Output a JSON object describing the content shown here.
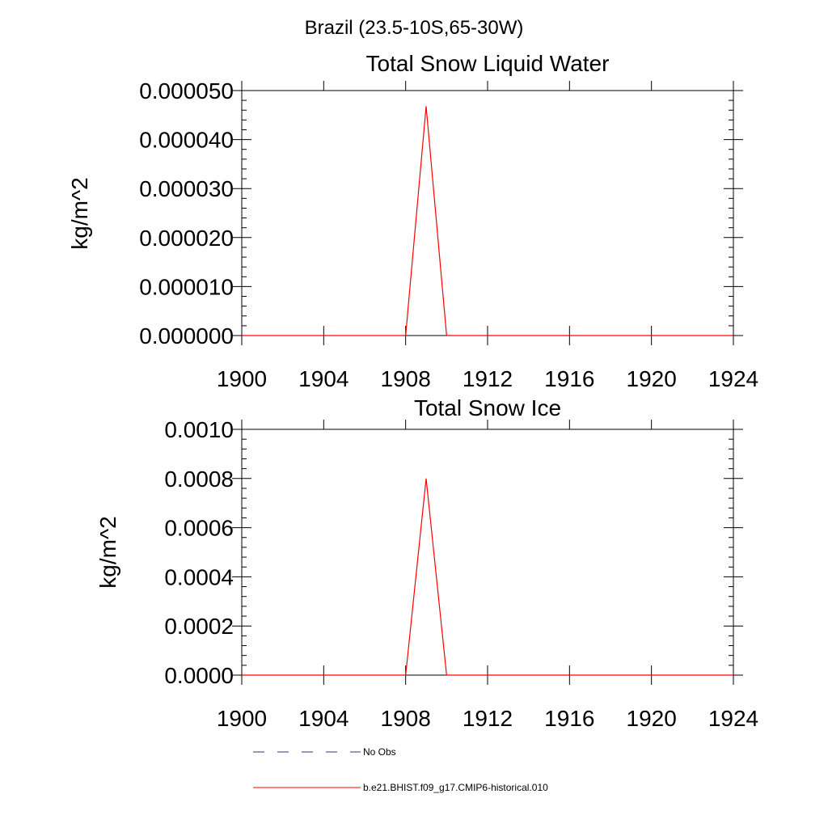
{
  "figure": {
    "region_title": "Brazil (23.5-10S,65-30W)"
  },
  "legend": [
    {
      "label": "No Obs",
      "color": "#33337f",
      "dash": true
    },
    {
      "label": "b.e21.BHIST.f09_g17.CMIP6-historical.010",
      "color": "#ff0000",
      "dash": false
    }
  ],
  "chart_data": [
    {
      "type": "line",
      "title": "Total Snow Liquid Water",
      "xlabel": "",
      "ylabel": "kg/m^2",
      "xlim": [
        1900,
        1924
      ],
      "ylim": [
        0,
        5e-05
      ],
      "x_ticks": [
        1900,
        1904,
        1908,
        1912,
        1916,
        1920,
        1924
      ],
      "x_tick_labels": [
        "1900",
        "1904",
        "1908",
        "1912",
        "1916",
        "1920",
        "1924"
      ],
      "y_ticks": [
        0,
        1e-05,
        2e-05,
        3e-05,
        4e-05,
        5e-05
      ],
      "y_tick_labels": [
        "0.000000",
        "0.000010",
        "0.000020",
        "0.000030",
        "0.000040",
        "0.000050"
      ],
      "grid": false,
      "series": [
        {
          "name": "b.e21.BHIST.f09_g17.CMIP6-historical.010",
          "color": "#ff0000",
          "x": [
            1900,
            1901,
            1902,
            1903,
            1904,
            1905,
            1906,
            1907,
            1908,
            1909,
            1910,
            1911,
            1912,
            1913,
            1914,
            1915,
            1916,
            1917,
            1918,
            1919,
            1920,
            1921,
            1922,
            1923,
            1924
          ],
          "y": [
            0,
            0,
            0,
            0,
            0,
            0,
            0,
            0,
            0,
            4.68e-05,
            0,
            0,
            0,
            0,
            0,
            0,
            0,
            0,
            0,
            0,
            0,
            0,
            0,
            0,
            0
          ]
        }
      ]
    },
    {
      "type": "line",
      "title": "Total Snow Ice",
      "xlabel": "",
      "ylabel": "kg/m^2",
      "xlim": [
        1900,
        1924
      ],
      "ylim": [
        0,
        0.001
      ],
      "x_ticks": [
        1900,
        1904,
        1908,
        1912,
        1916,
        1920,
        1924
      ],
      "x_tick_labels": [
        "1900",
        "1904",
        "1908",
        "1912",
        "1916",
        "1920",
        "1924"
      ],
      "y_ticks": [
        0,
        0.0002,
        0.0004,
        0.0006,
        0.0008,
        0.001
      ],
      "y_tick_labels": [
        "0.0000",
        "0.0002",
        "0.0004",
        "0.0006",
        "0.0008",
        "0.0010"
      ],
      "grid": false,
      "series": [
        {
          "name": "b.e21.BHIST.f09_g17.CMIP6-historical.010",
          "color": "#ff0000",
          "x": [
            1900,
            1901,
            1902,
            1903,
            1904,
            1905,
            1906,
            1907,
            1908,
            1909,
            1910,
            1911,
            1912,
            1913,
            1914,
            1915,
            1916,
            1917,
            1918,
            1919,
            1920,
            1921,
            1922,
            1923,
            1924
          ],
          "y": [
            0,
            0,
            0,
            0,
            0,
            0,
            0,
            0,
            0,
            0.0008,
            0,
            0,
            0,
            0,
            0,
            0,
            0,
            0,
            0,
            0,
            0,
            0,
            0,
            0,
            0
          ]
        }
      ]
    }
  ]
}
